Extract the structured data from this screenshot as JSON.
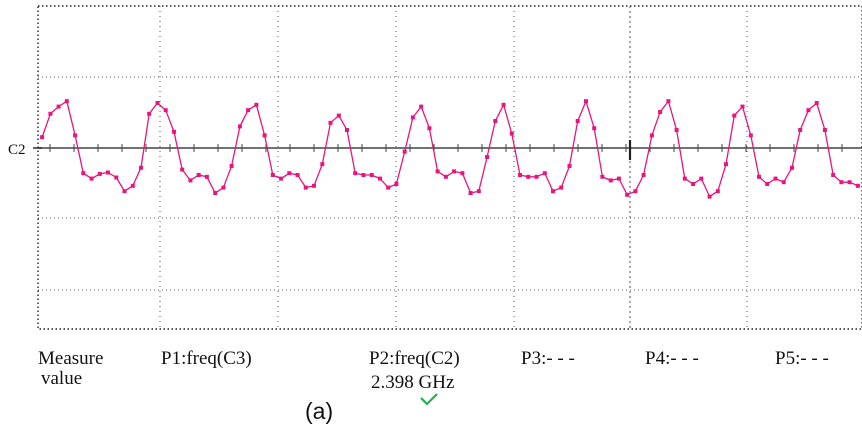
{
  "chart_data": {
    "type": "line",
    "title": "",
    "xlabel": "",
    "ylabel": "",
    "grid": true,
    "channel_marker": "C2",
    "trace_color": "#e8157e",
    "grid_color": "#555555",
    "xlim": [
      0,
      10
    ],
    "ylim": [
      -4,
      4
    ],
    "series": [
      {
        "values": [
          [
            0.05,
            0.3
          ],
          [
            0.15,
            0.95
          ],
          [
            0.25,
            1.15
          ],
          [
            0.35,
            1.3
          ],
          [
            0.45,
            0.35
          ],
          [
            0.55,
            -0.7
          ],
          [
            0.65,
            -0.85
          ],
          [
            0.75,
            -0.72
          ],
          [
            0.85,
            -0.68
          ],
          [
            0.95,
            -0.82
          ],
          [
            1.05,
            -1.2
          ],
          [
            1.15,
            -1.05
          ],
          [
            1.25,
            -0.55
          ],
          [
            1.35,
            0.95
          ],
          [
            1.45,
            1.25
          ],
          [
            1.55,
            1.05
          ],
          [
            1.65,
            0.45
          ],
          [
            1.75,
            -0.6
          ],
          [
            1.85,
            -0.9
          ],
          [
            1.95,
            -0.75
          ],
          [
            2.05,
            -0.8
          ],
          [
            2.15,
            -1.25
          ],
          [
            2.25,
            -1.1
          ],
          [
            2.35,
            -0.5
          ],
          [
            2.45,
            0.6
          ],
          [
            2.55,
            1.05
          ],
          [
            2.65,
            1.2
          ],
          [
            2.75,
            0.35
          ],
          [
            2.85,
            -0.75
          ],
          [
            2.95,
            -0.85
          ],
          [
            3.05,
            -0.7
          ],
          [
            3.15,
            -0.75
          ],
          [
            3.25,
            -1.1
          ],
          [
            3.35,
            -1.05
          ],
          [
            3.45,
            -0.45
          ],
          [
            3.55,
            0.7
          ],
          [
            3.65,
            0.9
          ],
          [
            3.75,
            0.5
          ],
          [
            3.85,
            -0.7
          ],
          [
            3.95,
            -0.75
          ],
          [
            4.05,
            -0.75
          ],
          [
            4.15,
            -0.85
          ],
          [
            4.25,
            -1.1
          ],
          [
            4.35,
            -1.0
          ],
          [
            4.45,
            -0.1
          ],
          [
            4.55,
            0.85
          ],
          [
            4.65,
            1.15
          ],
          [
            4.75,
            0.55
          ],
          [
            4.85,
            -0.65
          ],
          [
            4.95,
            -0.8
          ],
          [
            5.05,
            -0.65
          ],
          [
            5.15,
            -0.7
          ],
          [
            5.25,
            -1.25
          ],
          [
            5.35,
            -1.2
          ],
          [
            5.45,
            -0.25
          ],
          [
            5.55,
            0.75
          ],
          [
            5.65,
            1.2
          ],
          [
            5.75,
            0.4
          ],
          [
            5.85,
            -0.75
          ],
          [
            5.95,
            -0.8
          ],
          [
            6.05,
            -0.8
          ],
          [
            6.15,
            -0.7
          ],
          [
            6.25,
            -1.2
          ],
          [
            6.35,
            -1.1
          ],
          [
            6.45,
            -0.5
          ],
          [
            6.55,
            0.75
          ],
          [
            6.65,
            1.3
          ],
          [
            6.75,
            0.55
          ],
          [
            6.85,
            -0.8
          ],
          [
            6.95,
            -0.9
          ],
          [
            7.05,
            -0.85
          ],
          [
            7.15,
            -1.3
          ],
          [
            7.25,
            -1.2
          ],
          [
            7.35,
            -0.75
          ],
          [
            7.45,
            0.35
          ],
          [
            7.55,
            1.0
          ],
          [
            7.65,
            1.3
          ],
          [
            7.75,
            0.5
          ],
          [
            7.85,
            -0.85
          ],
          [
            7.95,
            -1.0
          ],
          [
            8.05,
            -0.85
          ],
          [
            8.15,
            -1.35
          ],
          [
            8.25,
            -1.2
          ],
          [
            8.35,
            -0.45
          ],
          [
            8.45,
            0.9
          ],
          [
            8.55,
            1.15
          ],
          [
            8.65,
            0.35
          ],
          [
            8.75,
            -0.8
          ],
          [
            8.85,
            -1.0
          ],
          [
            8.95,
            -0.85
          ],
          [
            9.05,
            -0.95
          ],
          [
            9.15,
            -0.55
          ],
          [
            9.25,
            0.5
          ],
          [
            9.35,
            1.05
          ],
          [
            9.45,
            1.25
          ],
          [
            9.55,
            0.5
          ],
          [
            9.65,
            -0.75
          ],
          [
            9.75,
            -0.95
          ],
          [
            9.85,
            -0.95
          ],
          [
            9.95,
            -1.05
          ],
          [
            10.05,
            -0.65
          ],
          [
            10.15,
            -0.2
          ]
        ]
      }
    ]
  },
  "measurements": {
    "measure_label_line1": "Measure",
    "measure_label_line2": "value",
    "p1_label": "P1:freq(C3)",
    "p2_label": "P2:freq(C2)",
    "p2_value": "2.398 GHz",
    "p3_label": "P3:- - -",
    "p4_label": "P4:- - -",
    "p5_label": "P5:- - -",
    "status_icon": "checkmark-icon",
    "status_color": "#22b14c"
  },
  "caption": "(a)"
}
